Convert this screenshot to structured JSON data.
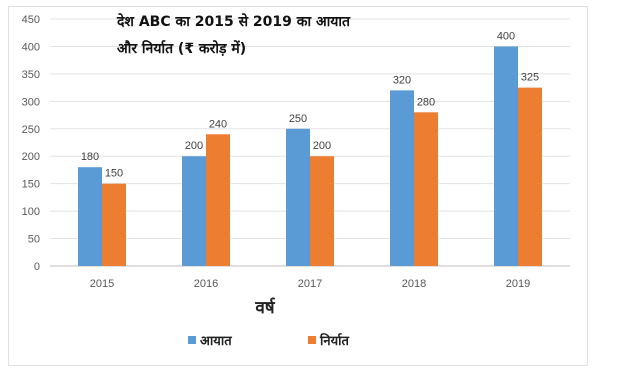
{
  "chart_data": {
    "type": "bar",
    "title_line1": "देश ABC का 2015 से 2019 का आयात",
    "title_line2": "और निर्यात (₹ करोड़ में)",
    "xlabel": "वर्ष",
    "ylabel": "",
    "categories": [
      "2015",
      "2016",
      "2017",
      "2018",
      "2019"
    ],
    "yticks": [
      "0",
      "50",
      "100",
      "150",
      "200",
      "250",
      "300",
      "350",
      "400",
      "450"
    ],
    "ylim": [
      0,
      450
    ],
    "grid": true,
    "legend_position": "bottom",
    "series": [
      {
        "name": "आयात",
        "values": [
          180,
          200,
          250,
          320,
          400
        ],
        "color": "#5B9BD5"
      },
      {
        "name": "निर्यात",
        "values": [
          150,
          240,
          200,
          280,
          325
        ],
        "color": "#ED7D31"
      }
    ]
  }
}
